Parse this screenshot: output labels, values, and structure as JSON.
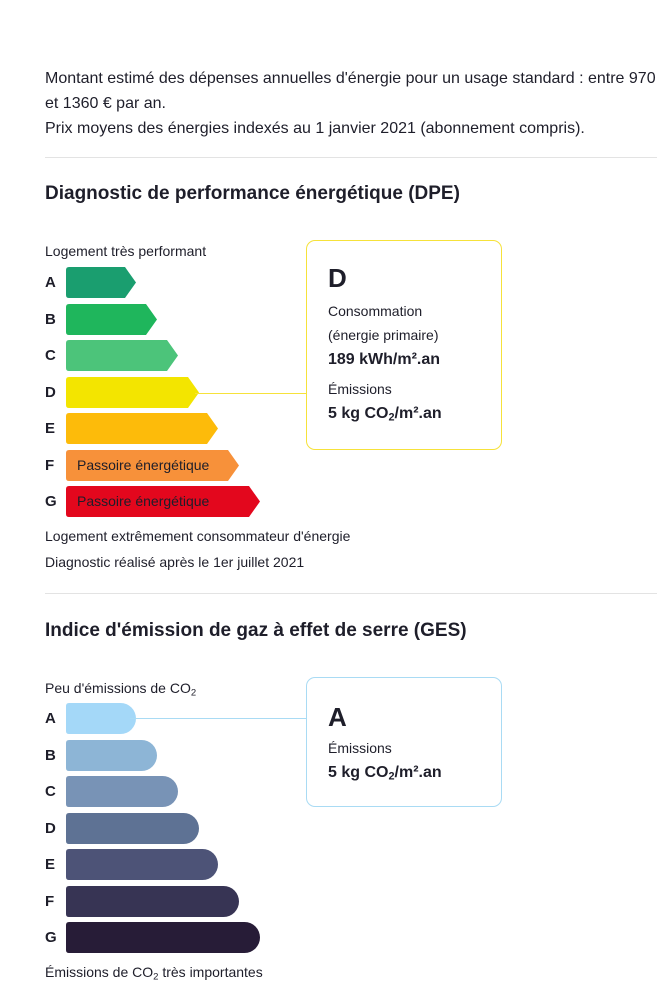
{
  "intro": {
    "line1": "Montant estimé des dépenses annuelles d'énergie pour un usage standard : entre 970 et 1360 € par an.",
    "line2": "Prix moyens des énergies indexés au 1 janvier 2021 (abonnement compris)."
  },
  "dpe": {
    "title": "Diagnostic de performance énergétique (DPE)",
    "top_label": "Logement très performant",
    "bottom_label": "Logement extrêmement consommateur d'énergie",
    "footnote": "Diagnostic réalisé après le 1er juillet 2021",
    "current_class": "D",
    "classes": [
      {
        "letter": "A",
        "color": "#1a9e6f",
        "text": ""
      },
      {
        "letter": "B",
        "color": "#1fb65c",
        "text": ""
      },
      {
        "letter": "C",
        "color": "#4cc47a",
        "text": ""
      },
      {
        "letter": "D",
        "color": "#f3e500",
        "text": ""
      },
      {
        "letter": "E",
        "color": "#fdbb0a",
        "text": ""
      },
      {
        "letter": "F",
        "color": "#f7913a",
        "text": "Passoire énergétique"
      },
      {
        "letter": "G",
        "color": "#e3071d",
        "text": "Passoire énergétique"
      }
    ],
    "card": {
      "border_color": "#f6e23a",
      "grade": "D",
      "consumption_label": "Consommation",
      "consumption_sublabel": "(énergie primaire)",
      "consumption_value": "189 kWh/m².an",
      "emissions_label": "Émissions",
      "emissions_value_prefix": "5 kg CO",
      "emissions_value_sub": "2",
      "emissions_value_suffix": "/m².an"
    }
  },
  "ges": {
    "title": "Indice d'émission de gaz à effet de serre (GES)",
    "top_label_prefix": "Peu d'émissions de CO",
    "top_label_sub": "2",
    "bottom_label_prefix": "Émissions de CO",
    "bottom_label_sub": "2",
    "bottom_label_suffix": " très importantes",
    "current_class": "A",
    "classes": [
      {
        "letter": "A",
        "color": "#a4d8f8"
      },
      {
        "letter": "B",
        "color": "#8db5d6"
      },
      {
        "letter": "C",
        "color": "#7893b6"
      },
      {
        "letter": "D",
        "color": "#5e7294"
      },
      {
        "letter": "E",
        "color": "#4d5377"
      },
      {
        "letter": "F",
        "color": "#373454"
      },
      {
        "letter": "G",
        "color": "#271c37"
      }
    ],
    "card": {
      "border_color": "#a9dbf4",
      "grade": "A",
      "emissions_label": "Émissions",
      "emissions_value_prefix": "5 kg CO",
      "emissions_value_sub": "2",
      "emissions_value_suffix": "/m².an"
    }
  }
}
